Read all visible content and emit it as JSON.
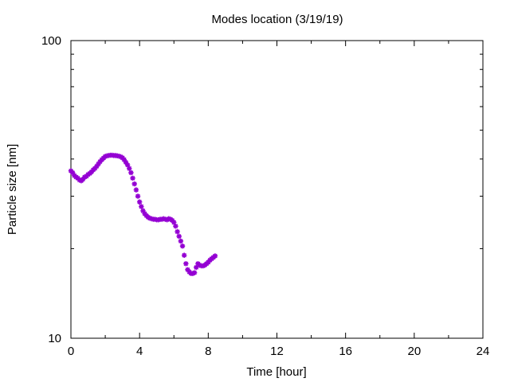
{
  "chart_data": {
    "type": "scatter",
    "title": "Modes location (3/19/19)",
    "xlabel": "Time [hour]",
    "ylabel": "Particle size [nm]",
    "xlim": [
      0,
      24
    ],
    "ylim": [
      10,
      100
    ],
    "yscale": "log",
    "grid": false,
    "legend": "none",
    "x_ticks": [
      "0",
      "4",
      "8",
      "12",
      "16",
      "20",
      "24"
    ],
    "y_ticks": [
      "10",
      "100"
    ],
    "marker_color": "#9400d3",
    "marker": "star",
    "series": [
      {
        "x": [
          0.0,
          0.1,
          0.2,
          0.3,
          0.4,
          0.5,
          0.6,
          0.7,
          0.8,
          0.9,
          1.0,
          1.1,
          1.2,
          1.3,
          1.4,
          1.5,
          1.6,
          1.7,
          1.8,
          1.9,
          2.0,
          2.1,
          2.2,
          2.3,
          2.4,
          2.5,
          2.6,
          2.7,
          2.8,
          2.9,
          3.0,
          3.1,
          3.2,
          3.3,
          3.4,
          3.5,
          3.6,
          3.7,
          3.8,
          3.9,
          4.0,
          4.1,
          4.2,
          4.3,
          4.4,
          4.5,
          4.6,
          4.7,
          4.8,
          4.9,
          5.0,
          5.1,
          5.2,
          5.3,
          5.4,
          5.5,
          5.6,
          5.7,
          5.8,
          5.9,
          6.0,
          6.1,
          6.2,
          6.3,
          6.4,
          6.5,
          6.6,
          6.7,
          6.8,
          6.9,
          7.0,
          7.1,
          7.2,
          7.3,
          7.4,
          7.5,
          7.6,
          7.7,
          7.8,
          7.9,
          8.0,
          8.1,
          8.2,
          8.3,
          8.4
        ],
        "y": [
          36.5,
          36.0,
          35.2,
          34.8,
          34.5,
          34.0,
          33.8,
          34.2,
          34.8,
          35.0,
          35.5,
          35.8,
          36.2,
          36.8,
          37.2,
          37.8,
          38.5,
          39.2,
          39.8,
          40.3,
          40.8,
          41.0,
          41.1,
          41.2,
          41.2,
          41.1,
          41.1,
          41.0,
          40.9,
          40.7,
          40.4,
          39.8,
          39.0,
          38.2,
          37.2,
          36.0,
          34.5,
          33.0,
          31.5,
          30.0,
          28.7,
          27.7,
          26.8,
          26.2,
          25.8,
          25.5,
          25.3,
          25.2,
          25.1,
          25.1,
          25.0,
          25.0,
          25.1,
          25.1,
          25.2,
          25.1,
          25.0,
          25.2,
          25.1,
          24.9,
          24.5,
          23.8,
          22.8,
          22.0,
          21.2,
          20.4,
          19.0,
          17.8,
          17.0,
          16.7,
          16.5,
          16.5,
          16.6,
          17.3,
          17.8,
          17.6,
          17.5,
          17.5,
          17.6,
          17.8,
          18.0,
          18.3,
          18.5,
          18.7,
          18.9
        ]
      }
    ]
  }
}
